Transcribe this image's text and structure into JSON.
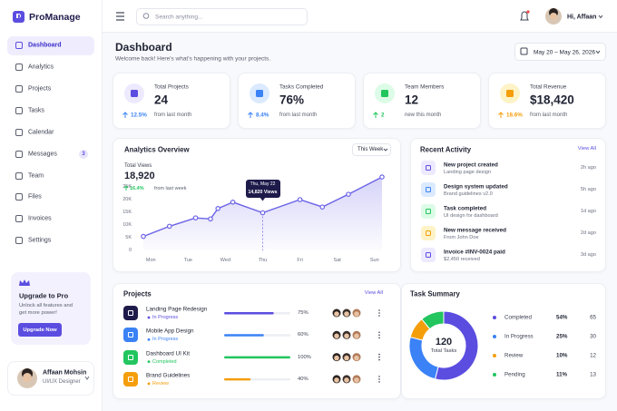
{
  "sidebar": {
    "logo": "ProManage",
    "nav": [
      {
        "label": "Dashboard"
      },
      {
        "label": "Analytics"
      },
      {
        "label": "Projects"
      },
      {
        "label": "Tasks"
      },
      {
        "label": "Calendar"
      },
      {
        "label": "Messages",
        "badge": 3
      },
      {
        "label": "Team"
      },
      {
        "label": "Files"
      },
      {
        "label": "Invoices"
      },
      {
        "label": "Settings"
      }
    ],
    "upgrade": {
      "title": "Upgrade to Pro",
      "text": "Unlock all features and get more power!",
      "button": "Upgrade Now"
    },
    "user": {
      "name": "Affaan Mohsin",
      "role": "UI/UX Designer"
    }
  },
  "topbar": {
    "search_placeholder": "Search anything...",
    "greeting": "Hi, Affaan"
  },
  "header": {
    "title": "Dashboard",
    "subtitle": "Welcome back! Here's what's happening with your projects.",
    "date_range": "May 20 – May 26, 2026"
  },
  "stats": [
    {
      "label": "Total Projects",
      "value": "24",
      "change": "12.5%",
      "note": "from last month",
      "color": "#5b4de0",
      "bg": "#ede9fe",
      "change_color": "#3b82f6"
    },
    {
      "label": "Tasks Completed",
      "value": "76%",
      "change": "8.4%",
      "note": "from last month",
      "color": "#3b82f6",
      "bg": "#dbeafe",
      "change_color": "#3b82f6"
    },
    {
      "label": "Team Members",
      "value": "12",
      "change": "2",
      "note": "new this month",
      "color": "#22c55e",
      "bg": "#dcfce7",
      "change_color": "#22c55e"
    },
    {
      "label": "Total Revenue",
      "value": "$18,420",
      "change": "18.6%",
      "note": "from last month",
      "color": "#f59e0b",
      "bg": "#fef3c7",
      "change_color": "#f59e0b"
    }
  ],
  "analytics": {
    "title": "Analytics Overview",
    "period": "This Week",
    "metric_label": "Total Views",
    "metric_value": "18,920",
    "metric_change": "16.4%",
    "metric_note": "from last week",
    "chart": {
      "type": "line",
      "color": "#6b63e6",
      "x": [
        -0.2,
        0.5,
        1.2,
        1.6,
        1.8,
        2.2,
        3,
        4,
        4.6,
        5.3,
        6.2
      ],
      "values": [
        5500,
        9500,
        12800,
        12400,
        16500,
        19000,
        14820,
        20000,
        17100,
        22100,
        28900
      ],
      "xlim": [
        -0.2,
        6.2
      ],
      "ylim": [
        0,
        30000
      ],
      "xticks": [
        {
          "value": 0,
          "label": "Mon"
        },
        {
          "value": 1,
          "label": "Tue"
        },
        {
          "value": 2,
          "label": "Wed"
        },
        {
          "value": 3,
          "label": "Thu"
        },
        {
          "value": 4,
          "label": "Fri"
        },
        {
          "value": 5,
          "label": "Sat"
        },
        {
          "value": 6,
          "label": "Sun"
        }
      ],
      "yticks": [
        0,
        {
          "value": 5000,
          "label": "5K"
        },
        {
          "value": 10000,
          "label": "10K"
        },
        {
          "value": 15000,
          "label": "15K"
        },
        {
          "value": 20000,
          "label": "20K"
        },
        {
          "value": 25000,
          "label": "25K"
        }
      ],
      "tooltip": {
        "x": 3,
        "title": "Thu, May 22",
        "text": "14,820 Views"
      }
    }
  },
  "activity": {
    "title": "Recent Activity",
    "link": "View All",
    "items": [
      {
        "title": "New project created",
        "subtitle": "Landing page design",
        "time": "2h ago",
        "color": "#5b4de0",
        "bg": "#ede9fe"
      },
      {
        "title": "Design system updated",
        "subtitle": "Brand guidelines v2.0",
        "time": "5h ago",
        "color": "#3b82f6",
        "bg": "#dbeafe"
      },
      {
        "title": "Task completed",
        "subtitle": "UI design for dashboard",
        "time": "1d ago",
        "color": "#22c55e",
        "bg": "#dcfce7"
      },
      {
        "title": "New message received",
        "subtitle": "From John Doe",
        "time": "2d ago",
        "color": "#f59e0b",
        "bg": "#fef3c7"
      },
      {
        "title": "Invoice #INV-0024 paid",
        "subtitle": "$2,450 received",
        "time": "3d ago",
        "color": "#5b4de0",
        "bg": "#ede9fe"
      }
    ]
  },
  "projects": {
    "title": "Projects",
    "link": "View All",
    "rows": [
      {
        "name": "Landing Page Redesign",
        "status": "In Progress",
        "progress": 75,
        "progress_label": "75%",
        "color": "#5b4de0",
        "icon": "#1e1b4b"
      },
      {
        "name": "Mobile App Design",
        "status": "In Progress",
        "progress": 60,
        "progress_label": "60%",
        "color": "#3b82f6",
        "icon": "#3b82f6"
      },
      {
        "name": "Dashboard UI Kit",
        "status": "Completed",
        "progress": 100,
        "progress_label": "100%",
        "color": "#22c55e",
        "icon": "#22c55e"
      },
      {
        "name": "Brand Guidelines",
        "status": "Review",
        "progress": 40,
        "progress_label": "40%",
        "color": "#f59e0b",
        "icon": "#f59e0b"
      }
    ]
  },
  "task_summary": {
    "title": "Task Summary",
    "chart": {
      "type": "donut",
      "total": 120,
      "total_label": "Total Tasks",
      "categories": [
        "Completed",
        "In Progress",
        "Review",
        "Pending"
      ],
      "values": [
        54,
        25,
        10,
        11
      ],
      "value_labels": [
        "54%",
        "25%",
        "10%",
        "11%"
      ],
      "counts": [
        65,
        30,
        12,
        13
      ],
      "colors": [
        "#5b4de0",
        "#3b82f6",
        "#f59e0b",
        "#22c55e"
      ]
    }
  }
}
